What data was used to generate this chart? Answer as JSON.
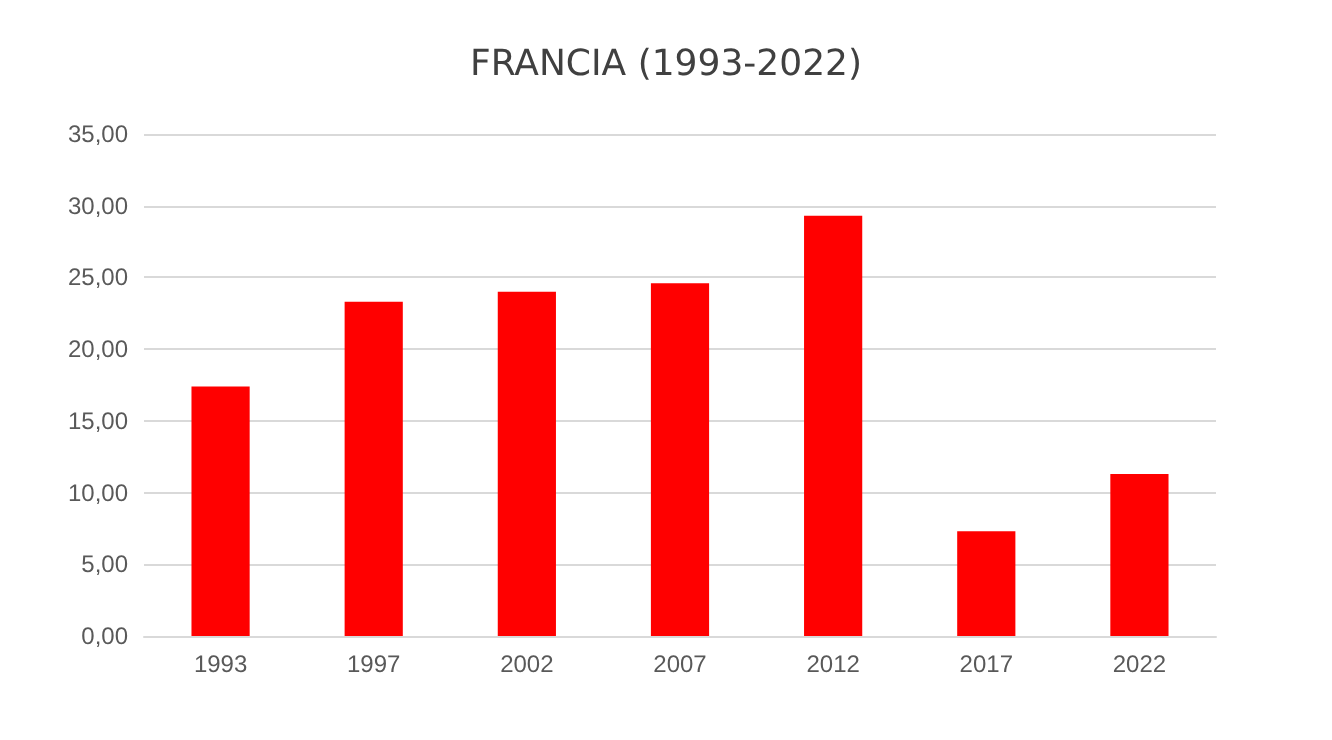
{
  "chart_data": {
    "type": "bar",
    "title": "FRANCIA (1993-2022)",
    "categories": [
      "1993",
      "1997",
      "2002",
      "2007",
      "2012",
      "2017",
      "2022"
    ],
    "values": [
      17.4,
      23.3,
      24.0,
      24.6,
      29.3,
      7.3,
      11.3
    ],
    "color": "#ff0000",
    "ylim": [
      0,
      35
    ],
    "yticks": [
      {
        "value": 0,
        "label": "0,00"
      },
      {
        "value": 5,
        "label": "5,00"
      },
      {
        "value": 10,
        "label": "10,00"
      },
      {
        "value": 15,
        "label": "15,00"
      },
      {
        "value": 20,
        "label": "20,00"
      },
      {
        "value": 25,
        "label": "25,00"
      },
      {
        "value": 30,
        "label": "30,00"
      },
      {
        "value": 35,
        "label": "35,00"
      }
    ],
    "grid": "y"
  }
}
